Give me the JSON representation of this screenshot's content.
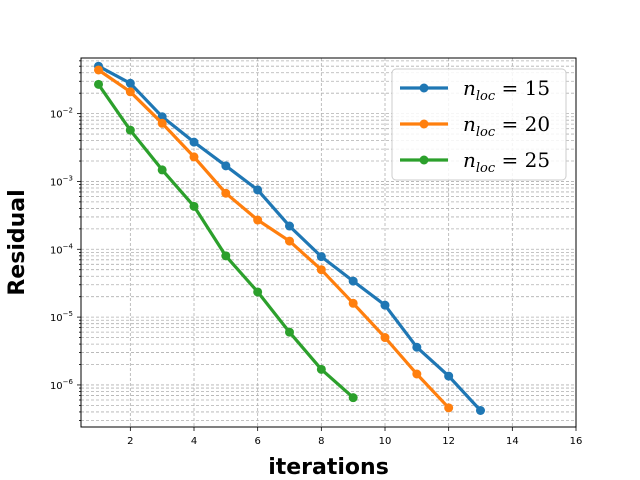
{
  "chart_data": {
    "type": "line",
    "xlabel": "iterations",
    "ylabel": "Residual",
    "xlim": [
      0.45,
      16
    ],
    "ylim_log10": [
      -6.62,
      -1.18
    ],
    "y_scale": "log",
    "grid": "both major and minor, dashed grey",
    "legend_position": "top-right",
    "x_ticks": [
      2,
      4,
      6,
      8,
      10,
      12,
      14,
      16
    ],
    "y_ticks": [
      {
        "exp": -6,
        "label": "10",
        "sup": "−6"
      },
      {
        "exp": -5,
        "label": "10",
        "sup": "−5"
      },
      {
        "exp": -4,
        "label": "10",
        "sup": "−4"
      },
      {
        "exp": -3,
        "label": "10",
        "sup": "−3"
      },
      {
        "exp": -2,
        "label": "10",
        "sup": "−2"
      }
    ],
    "series": [
      {
        "name": "n_loc = 15",
        "legend_prefix": "n",
        "legend_sub": "loc",
        "legend_suffix": " = 15",
        "color": "#1f77b4",
        "x": [
          1,
          2,
          3,
          4,
          5,
          6,
          7,
          8,
          9,
          10,
          11,
          12,
          13
        ],
        "values": [
          0.05,
          0.028,
          0.009,
          0.0038,
          0.0017,
          0.00075,
          0.00022,
          7.8e-05,
          3.4e-05,
          1.5e-05,
          3.6e-06,
          1.35e-06,
          4.2e-07
        ]
      },
      {
        "name": "n_loc = 20",
        "legend_prefix": "n",
        "legend_sub": "loc",
        "legend_suffix": " = 20",
        "color": "#ff7f0e",
        "x": [
          1,
          2,
          3,
          4,
          5,
          6,
          7,
          8,
          9,
          10,
          11,
          12
        ],
        "values": [
          0.044,
          0.021,
          0.0072,
          0.0023,
          0.00067,
          0.00027,
          0.000132,
          5e-05,
          1.6e-05,
          5e-06,
          1.45e-06,
          4.6e-07
        ]
      },
      {
        "name": "n_loc = 25",
        "legend_prefix": "n",
        "legend_sub": "loc",
        "legend_suffix": " = 25",
        "color": "#2ca02c",
        "x": [
          1,
          2,
          3,
          4,
          5,
          6,
          7,
          8,
          9
        ],
        "values": [
          0.027,
          0.0057,
          0.00148,
          0.00043,
          8e-05,
          2.35e-05,
          6e-06,
          1.7e-06,
          6.5e-07
        ]
      }
    ]
  }
}
